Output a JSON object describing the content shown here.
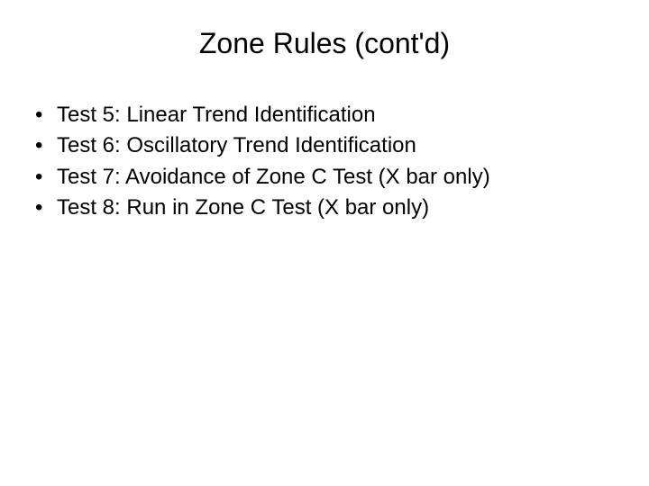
{
  "slide": {
    "title": "Zone Rules (cont'd)",
    "bullets": [
      "Test 5: Linear Trend Identification",
      "Test 6: Oscillatory Trend Identification",
      "Test 7: Avoidance of Zone C Test (X bar only)",
      "Test 8: Run in Zone C Test (X bar only)"
    ],
    "background_color": "#ffffff",
    "text_color": "#000000",
    "title_fontsize": 32,
    "body_fontsize": 24,
    "font_family": "Arial"
  }
}
